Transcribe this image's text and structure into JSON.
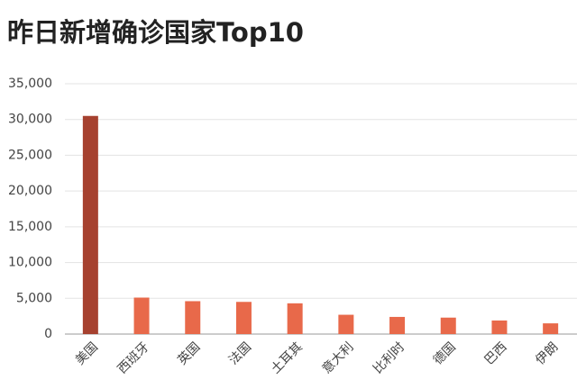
{
  "chart_data": {
    "type": "bar",
    "title": "昨日新增确诊国家Top10",
    "categories": [
      "美国",
      "西班牙",
      "英国",
      "法国",
      "土耳其",
      "意大利",
      "比利时",
      "德国",
      "巴西",
      "伊朗"
    ],
    "values": [
      30500,
      5100,
      4600,
      4500,
      4300,
      2700,
      2400,
      2300,
      1900,
      1500
    ],
    "colors": [
      "#a6412f",
      "#e8694a",
      "#e8694a",
      "#e8694a",
      "#e8694a",
      "#e8694a",
      "#e8694a",
      "#e8694a",
      "#e8694a",
      "#e8694a"
    ],
    "ylim": [
      0,
      35000
    ],
    "yticks": [
      0,
      {
        "value": 5000,
        "label": "5,000"
      },
      {
        "value": 10000,
        "label": "10,000"
      },
      {
        "value": 15000,
        "label": "15,000"
      },
      {
        "value": 20000,
        "label": "20,000"
      },
      {
        "value": 25000,
        "label": "25,000"
      },
      {
        "value": 30000,
        "label": "30,000"
      },
      {
        "value": 35000,
        "label": "35,000"
      }
    ],
    "grid": true
  }
}
